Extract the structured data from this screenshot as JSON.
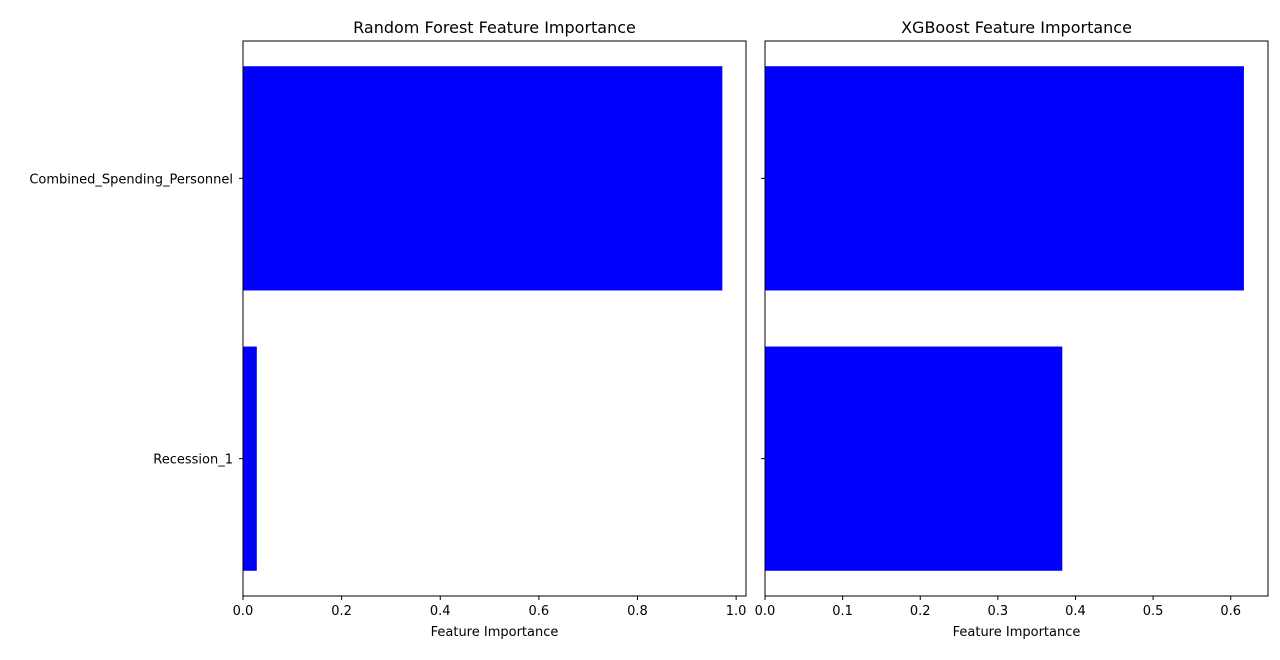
{
  "chart_data": [
    {
      "type": "bar",
      "orientation": "horizontal",
      "title": "Random Forest Feature Importance",
      "xlabel": "Feature Importance",
      "ylabel": "",
      "categories": [
        "Combined_Spending_Personnel",
        "Recession_1"
      ],
      "values": [
        0.972,
        0.028
      ],
      "bar_color": "#0000ff",
      "xlim": [
        0,
        1.02
      ],
      "xticks": [
        0.0,
        0.2,
        0.4,
        0.6,
        0.8,
        1.0
      ],
      "xtick_labels": [
        "0.0",
        "0.2",
        "0.4",
        "0.6",
        "0.8",
        "1.0"
      ],
      "grid": false
    },
    {
      "type": "bar",
      "orientation": "horizontal",
      "title": "XGBoost Feature Importance",
      "xlabel": "Feature Importance",
      "ylabel": "",
      "categories": [
        "Combined_Spending_Personnel",
        "Recession_1"
      ],
      "values": [
        0.617,
        0.383
      ],
      "bar_color": "#0000ff",
      "xlim": [
        0,
        0.648
      ],
      "xticks": [
        0.0,
        0.1,
        0.2,
        0.3,
        0.4,
        0.5,
        0.6
      ],
      "xtick_labels": [
        "0.0",
        "0.1",
        "0.2",
        "0.3",
        "0.4",
        "0.5",
        "0.6"
      ],
      "grid": false
    }
  ]
}
